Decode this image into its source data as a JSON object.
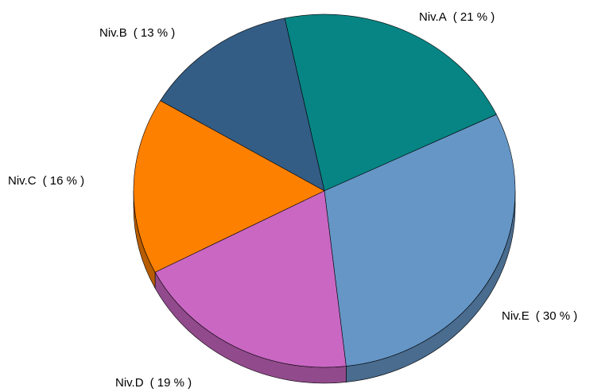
{
  "chart_data": {
    "type": "pie3d",
    "categories": [
      "Niv.A",
      "Niv.E",
      "Niv.D",
      "Niv.C",
      "Niv.B"
    ],
    "values": [
      21,
      30,
      19,
      16,
      13
    ],
    "value_labels": [
      "( 21 % )",
      "( 30 % )",
      "( 19 % )",
      "( 16 % )",
      "( 13 % )"
    ],
    "colors": [
      "#078584",
      "#6596c6",
      "#c967c3",
      "#fe8001",
      "#335d85"
    ]
  }
}
